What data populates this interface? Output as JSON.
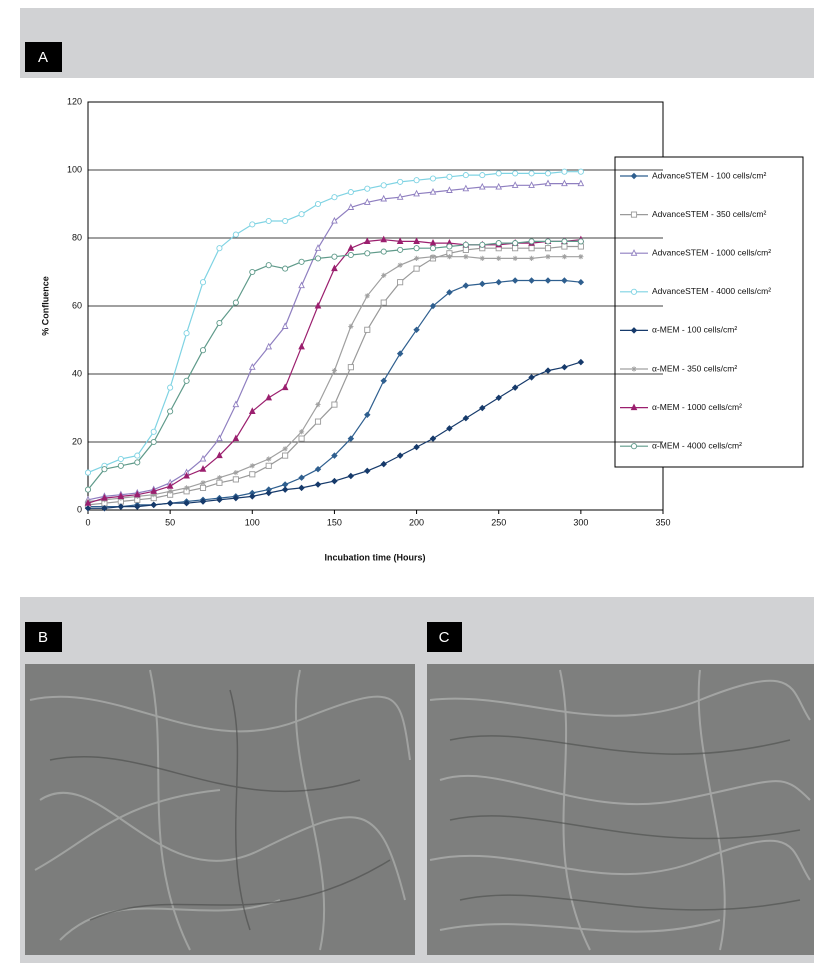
{
  "panel_labels": [
    "A",
    "B",
    "C"
  ],
  "chart_data": {
    "type": "line",
    "ylabel": "% Confluence",
    "xlabel": "Incubation time (Hours)",
    "x": [
      0,
      10,
      20,
      30,
      40,
      50,
      60,
      70,
      80,
      90,
      100,
      110,
      120,
      130,
      140,
      150,
      160,
      170,
      180,
      190,
      200,
      210,
      220,
      230,
      240,
      250,
      260,
      270,
      280,
      290,
      300
    ],
    "xlim": [
      0,
      350
    ],
    "xticks": [
      0,
      50,
      100,
      150,
      200,
      250,
      300,
      350
    ],
    "ylim": [
      0,
      120
    ],
    "yticks": [
      0,
      20,
      40,
      60,
      80,
      100,
      120
    ],
    "grid": true,
    "legend": "right",
    "series": [
      {
        "name": "AdvanceSTEM - 100 cells/cm²",
        "color": "#2f5f8f",
        "marker": "diamond",
        "values": [
          1,
          1,
          1,
          1.5,
          1.5,
          2,
          2.5,
          3,
          3.5,
          4,
          5,
          6,
          7.5,
          9.5,
          12,
          16,
          21,
          28,
          38,
          46,
          53,
          60,
          64,
          66,
          66.5,
          67,
          67.5,
          67.5,
          67.5,
          67.5,
          67
        ]
      },
      {
        "name": "AdvanceSTEM - 350 cells/cm²",
        "color": "#9a9a9a",
        "marker": "square",
        "values": [
          1.5,
          2,
          2.5,
          3,
          3.5,
          4.5,
          5.5,
          6.5,
          8,
          9,
          10.5,
          13,
          16,
          21,
          26,
          31,
          42,
          53,
          61,
          67,
          71,
          74,
          75.5,
          76.5,
          77,
          77,
          77,
          77,
          77,
          77.5,
          77.5
        ]
      },
      {
        "name": "AdvanceSTEM - 1000 cells/cm²",
        "color": "#8f7fc0",
        "marker": "triangle-open",
        "values": [
          3,
          4,
          4.5,
          5,
          6,
          8,
          11,
          15,
          21,
          31,
          42,
          48,
          54,
          66,
          77,
          85,
          89,
          90.5,
          91.5,
          92,
          93,
          93.5,
          94,
          94.5,
          95,
          95,
          95.5,
          95.5,
          96,
          96,
          96
        ]
      },
      {
        "name": "AdvanceSTEM - 4000 cells/cm²",
        "color": "#7fd3e3",
        "marker": "circle",
        "values": [
          11,
          13,
          15,
          16,
          23,
          36,
          52,
          67,
          77,
          81,
          84,
          85,
          85,
          87,
          90,
          92,
          93.5,
          94.5,
          95.5,
          96.5,
          97,
          97.5,
          98,
          98.5,
          98.5,
          99,
          99,
          99,
          99,
          99.5,
          99.5
        ]
      },
      {
        "name": "α-MEM - 100 cells/cm²",
        "color": "#163a6b",
        "marker": "diamond",
        "values": [
          0.5,
          0.5,
          1,
          1,
          1.5,
          2,
          2,
          2.5,
          3,
          3.5,
          4,
          5,
          6,
          6.5,
          7.5,
          8.5,
          10,
          11.5,
          13.5,
          16,
          18.5,
          21,
          24,
          27,
          30,
          33,
          36,
          39,
          41,
          42,
          43.5
        ]
      },
      {
        "name": "α-MEM - 350 cells/cm²",
        "color": "#a0a0a0",
        "marker": "asterisk",
        "values": [
          2.5,
          3,
          3.5,
          4,
          4.5,
          5.5,
          6.5,
          8,
          9.5,
          11,
          13,
          15,
          18,
          23,
          31,
          41,
          54,
          63,
          69,
          72,
          74,
          74.5,
          74.5,
          74.5,
          74,
          74,
          74,
          74,
          74.5,
          74.5,
          74.5
        ]
      },
      {
        "name": "α-MEM - 1000 cells/cm²",
        "color": "#9b1f6e",
        "marker": "triangle",
        "values": [
          2,
          3.5,
          4,
          4.5,
          5.5,
          7,
          10,
          12,
          16,
          21,
          29,
          33,
          36,
          48,
          60,
          71,
          77,
          79,
          79.5,
          79,
          79,
          78.5,
          78.5,
          78,
          78,
          78,
          78.5,
          78.5,
          79,
          79,
          79.5
        ]
      },
      {
        "name": "α-MEM - 4000 cells/cm²",
        "color": "#5f9a8a",
        "marker": "circle",
        "values": [
          6,
          12,
          13,
          14,
          20,
          29,
          38,
          47,
          55,
          61,
          70,
          72,
          71,
          73,
          74,
          74.5,
          75,
          75.5,
          76,
          76.5,
          77,
          77,
          77.5,
          78,
          78,
          78.5,
          78.5,
          79,
          79,
          79,
          79
        ]
      }
    ]
  }
}
